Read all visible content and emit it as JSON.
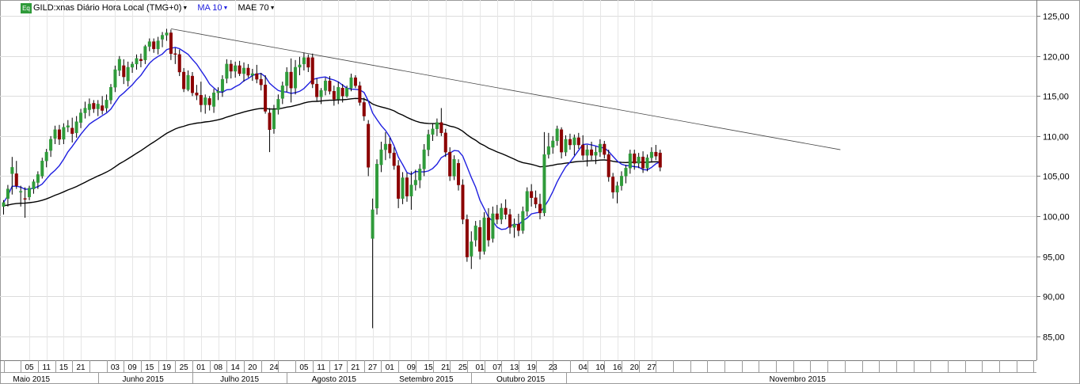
{
  "legend": {
    "symbol_badge": "Eq",
    "symbol_label": "GILD:xnas Diário Hora Local (TMG+0)",
    "ma_label": "MA 10",
    "mae_label": "MAE 70",
    "ma_color": "#1f1fe0",
    "mae_color": "#000000",
    "dropdown_glyph": "▼"
  },
  "chart_data": {
    "type": "candlestick",
    "title": "",
    "ylim": [
      82,
      127
    ],
    "y_ticks": [
      "125,00",
      "120,00",
      "115,00",
      "110,00",
      "105,00",
      "100,00",
      "95,00",
      "90,00",
      "85,00"
    ],
    "y_tick_values": [
      125,
      120,
      115,
      110,
      105,
      100,
      95,
      90,
      85
    ],
    "up_color": "#2f9b3a",
    "down_color": "#8b0000",
    "x_day_labels": [
      {
        "label": "05",
        "index": 6
      },
      {
        "label": "11",
        "index": 10
      },
      {
        "label": "15",
        "index": 14
      },
      {
        "label": "21",
        "index": 18
      },
      {
        "label": "03",
        "index": 26
      },
      {
        "label": "09",
        "index": 30
      },
      {
        "label": "15",
        "index": 34
      },
      {
        "label": "19",
        "index": 38
      },
      {
        "label": "25",
        "index": 42
      },
      {
        "label": "01",
        "index": 46
      },
      {
        "label": "08",
        "index": 50
      },
      {
        "label": "14",
        "index": 54
      },
      {
        "label": "20",
        "index": 58
      },
      {
        "label": "24",
        "index": 63
      },
      {
        "label": "05",
        "index": 70
      },
      {
        "label": "11",
        "index": 74
      },
      {
        "label": "17",
        "index": 78
      },
      {
        "label": "21",
        "index": 82
      },
      {
        "label": "27",
        "index": 86
      },
      {
        "label": "01",
        "index": 90
      },
      {
        "label": "09",
        "index": 95
      },
      {
        "label": "15",
        "index": 99
      },
      {
        "label": "21",
        "index": 103
      },
      {
        "label": "25",
        "index": 107
      },
      {
        "label": "01",
        "index": 111
      },
      {
        "label": "07",
        "index": 115
      },
      {
        "label": "13",
        "index": 119
      },
      {
        "label": "19",
        "index": 123
      },
      {
        "label": "23",
        "index": 128
      },
      {
        "label": "04",
        "index": 135
      },
      {
        "label": "10",
        "index": 139
      },
      {
        "label": "16",
        "index": 143
      },
      {
        "label": "20",
        "index": 147
      },
      {
        "label": "27",
        "index": 151
      }
    ],
    "x_month_labels": [
      {
        "label": "Maio 2015",
        "index": 6.5
      },
      {
        "label": "Junho 2015",
        "index": 32.5
      },
      {
        "label": "Julho 2015",
        "index": 55
      },
      {
        "label": "Agosto 2015",
        "index": 77
      },
      {
        "label": "Setembro 2015",
        "index": 98.5
      },
      {
        "label": "Outubro 2015",
        "index": 120.5
      },
      {
        "label": "Novembro 2015",
        "index": 185
      }
    ],
    "month_boundaries": [
      22,
      44,
      66,
      109,
      131
    ],
    "trendline": {
      "start": {
        "index": 39,
        "value": 123.4
      },
      "end": {
        "index": 195,
        "value": 108.3
      }
    },
    "candles": [
      {
        "o": 101.2,
        "h": 102.0,
        "l": 100.2,
        "c": 101.7
      },
      {
        "o": 102.2,
        "h": 103.9,
        "l": 101.2,
        "c": 103.4
      },
      {
        "o": 105.3,
        "h": 107.4,
        "l": 102.7,
        "c": 106.1
      },
      {
        "o": 105.3,
        "h": 106.9,
        "l": 103.4,
        "c": 103.8
      },
      {
        "o": 103.0,
        "h": 103.8,
        "l": 101.2,
        "c": 103.1
      },
      {
        "o": 102.2,
        "h": 103.6,
        "l": 99.8,
        "c": 102.1
      },
      {
        "o": 102.4,
        "h": 103.8,
        "l": 102.0,
        "c": 103.5
      },
      {
        "o": 103.4,
        "h": 104.6,
        "l": 102.8,
        "c": 104.3
      },
      {
        "o": 104.2,
        "h": 105.6,
        "l": 103.4,
        "c": 105.2
      },
      {
        "o": 105.0,
        "h": 107.3,
        "l": 104.7,
        "c": 106.9
      },
      {
        "o": 106.9,
        "h": 108.4,
        "l": 106.1,
        "c": 108.0
      },
      {
        "o": 108.2,
        "h": 110.0,
        "l": 107.4,
        "c": 109.6
      },
      {
        "o": 109.7,
        "h": 111.3,
        "l": 109.0,
        "c": 110.8
      },
      {
        "o": 110.8,
        "h": 111.4,
        "l": 108.9,
        "c": 109.6
      },
      {
        "o": 109.6,
        "h": 111.6,
        "l": 109.0,
        "c": 111.1
      },
      {
        "o": 111.1,
        "h": 112.0,
        "l": 110.5,
        "c": 111.3
      },
      {
        "o": 111.0,
        "h": 112.3,
        "l": 109.2,
        "c": 110.3
      },
      {
        "o": 110.4,
        "h": 112.5,
        "l": 109.8,
        "c": 111.8
      },
      {
        "o": 111.7,
        "h": 113.4,
        "l": 111.0,
        "c": 112.9
      },
      {
        "o": 112.9,
        "h": 114.3,
        "l": 112.2,
        "c": 113.5
      },
      {
        "o": 113.3,
        "h": 114.7,
        "l": 112.5,
        "c": 114.0
      },
      {
        "o": 114.1,
        "h": 114.5,
        "l": 112.9,
        "c": 113.4
      },
      {
        "o": 113.4,
        "h": 114.5,
        "l": 112.5,
        "c": 114.0
      },
      {
        "o": 113.8,
        "h": 115.0,
        "l": 112.7,
        "c": 113.2
      },
      {
        "o": 113.5,
        "h": 115.2,
        "l": 113.0,
        "c": 114.5
      },
      {
        "o": 114.5,
        "h": 116.5,
        "l": 114.0,
        "c": 116.1
      },
      {
        "o": 116.1,
        "h": 118.8,
        "l": 115.5,
        "c": 118.3
      },
      {
        "o": 118.2,
        "h": 120.0,
        "l": 117.5,
        "c": 119.6
      },
      {
        "o": 118.8,
        "h": 119.6,
        "l": 116.5,
        "c": 117.4
      },
      {
        "o": 116.9,
        "h": 119.3,
        "l": 116.2,
        "c": 118.6
      },
      {
        "o": 118.6,
        "h": 119.3,
        "l": 117.9,
        "c": 119.0
      },
      {
        "o": 119.0,
        "h": 120.2,
        "l": 118.3,
        "c": 119.7
      },
      {
        "o": 119.6,
        "h": 120.3,
        "l": 118.6,
        "c": 119.4
      },
      {
        "o": 119.5,
        "h": 121.4,
        "l": 119.0,
        "c": 121.2
      },
      {
        "o": 121.2,
        "h": 122.2,
        "l": 120.6,
        "c": 121.8
      },
      {
        "o": 121.8,
        "h": 122.2,
        "l": 120.4,
        "c": 120.9
      },
      {
        "o": 120.9,
        "h": 122.4,
        "l": 120.2,
        "c": 121.9
      },
      {
        "o": 122.1,
        "h": 123.0,
        "l": 121.1,
        "c": 122.6
      },
      {
        "o": 122.6,
        "h": 123.4,
        "l": 121.9,
        "c": 122.9
      },
      {
        "o": 122.9,
        "h": 123.3,
        "l": 119.5,
        "c": 120.3
      },
      {
        "o": 120.3,
        "h": 121.0,
        "l": 119.0,
        "c": 120.2
      },
      {
        "o": 120.2,
        "h": 120.8,
        "l": 117.5,
        "c": 118.0
      },
      {
        "o": 118.0,
        "h": 118.5,
        "l": 115.5,
        "c": 115.9
      },
      {
        "o": 115.8,
        "h": 118.2,
        "l": 115.6,
        "c": 117.6
      },
      {
        "o": 117.5,
        "h": 118.0,
        "l": 115.0,
        "c": 115.4
      },
      {
        "o": 115.4,
        "h": 116.4,
        "l": 114.5,
        "c": 115.1
      },
      {
        "o": 115.1,
        "h": 116.8,
        "l": 113.0,
        "c": 113.9
      },
      {
        "o": 113.9,
        "h": 115.2,
        "l": 112.8,
        "c": 114.8
      },
      {
        "o": 114.7,
        "h": 115.0,
        "l": 113.2,
        "c": 113.9
      },
      {
        "o": 113.7,
        "h": 115.9,
        "l": 112.9,
        "c": 115.4
      },
      {
        "o": 115.4,
        "h": 116.1,
        "l": 114.5,
        "c": 115.6
      },
      {
        "o": 115.6,
        "h": 117.6,
        "l": 114.9,
        "c": 117.1
      },
      {
        "o": 117.2,
        "h": 119.6,
        "l": 116.6,
        "c": 119.0
      },
      {
        "o": 119.0,
        "h": 119.5,
        "l": 117.2,
        "c": 118.1
      },
      {
        "o": 118.1,
        "h": 119.3,
        "l": 117.3,
        "c": 118.8
      },
      {
        "o": 118.8,
        "h": 119.4,
        "l": 117.5,
        "c": 117.8
      },
      {
        "o": 117.8,
        "h": 119.2,
        "l": 116.8,
        "c": 118.5
      },
      {
        "o": 118.5,
        "h": 119.0,
        "l": 117.3,
        "c": 117.6
      },
      {
        "o": 117.6,
        "h": 118.4,
        "l": 116.9,
        "c": 117.8
      },
      {
        "o": 117.8,
        "h": 118.9,
        "l": 116.6,
        "c": 117.1
      },
      {
        "o": 117.1,
        "h": 117.9,
        "l": 115.7,
        "c": 116.4
      },
      {
        "o": 116.4,
        "h": 117.6,
        "l": 112.8,
        "c": 113.1
      },
      {
        "o": 112.9,
        "h": 113.5,
        "l": 108.0,
        "c": 110.8
      },
      {
        "o": 110.9,
        "h": 113.9,
        "l": 110.3,
        "c": 113.3
      },
      {
        "o": 113.3,
        "h": 115.2,
        "l": 112.7,
        "c": 114.6
      },
      {
        "o": 114.7,
        "h": 116.8,
        "l": 114.0,
        "c": 116.3
      },
      {
        "o": 116.3,
        "h": 118.6,
        "l": 115.5,
        "c": 118.0
      },
      {
        "o": 118.0,
        "h": 119.7,
        "l": 114.2,
        "c": 116.0
      },
      {
        "o": 116.0,
        "h": 119.5,
        "l": 115.2,
        "c": 118.6
      },
      {
        "o": 118.6,
        "h": 119.9,
        "l": 117.6,
        "c": 118.9
      },
      {
        "o": 119.0,
        "h": 120.4,
        "l": 118.2,
        "c": 119.8
      },
      {
        "o": 119.8,
        "h": 120.2,
        "l": 118.0,
        "c": 118.6
      },
      {
        "o": 119.8,
        "h": 120.3,
        "l": 116.0,
        "c": 116.5
      },
      {
        "o": 116.5,
        "h": 117.2,
        "l": 114.3,
        "c": 114.9
      },
      {
        "o": 114.9,
        "h": 116.0,
        "l": 114.0,
        "c": 115.7
      },
      {
        "o": 115.7,
        "h": 117.3,
        "l": 115.1,
        "c": 116.9
      },
      {
        "o": 116.9,
        "h": 117.5,
        "l": 115.2,
        "c": 115.6
      },
      {
        "o": 115.6,
        "h": 116.3,
        "l": 113.8,
        "c": 114.6
      },
      {
        "o": 114.6,
        "h": 116.8,
        "l": 114.0,
        "c": 116.1
      },
      {
        "o": 116.0,
        "h": 116.5,
        "l": 114.2,
        "c": 115.0
      },
      {
        "o": 115.0,
        "h": 116.3,
        "l": 114.8,
        "c": 116.0
      },
      {
        "o": 116.0,
        "h": 117.8,
        "l": 115.6,
        "c": 117.3
      },
      {
        "o": 117.3,
        "h": 117.6,
        "l": 116.0,
        "c": 116.3
      },
      {
        "o": 116.3,
        "h": 116.8,
        "l": 113.8,
        "c": 114.2
      },
      {
        "o": 114.2,
        "h": 114.8,
        "l": 111.9,
        "c": 112.5
      },
      {
        "o": 111.5,
        "h": 112.0,
        "l": 105.0,
        "c": 106.1
      },
      {
        "o": 97.2,
        "h": 102.2,
        "l": 86.0,
        "c": 100.8
      },
      {
        "o": 101.0,
        "h": 107.1,
        "l": 100.2,
        "c": 106.5
      },
      {
        "o": 106.4,
        "h": 109.3,
        "l": 105.5,
        "c": 108.3
      },
      {
        "o": 108.3,
        "h": 110.5,
        "l": 107.0,
        "c": 109.0
      },
      {
        "o": 109.0,
        "h": 109.8,
        "l": 107.2,
        "c": 107.9
      },
      {
        "o": 107.9,
        "h": 108.6,
        "l": 105.8,
        "c": 106.3
      },
      {
        "o": 106.3,
        "h": 107.0,
        "l": 101.0,
        "c": 102.2
      },
      {
        "o": 102.2,
        "h": 105.5,
        "l": 101.5,
        "c": 104.8
      },
      {
        "o": 104.8,
        "h": 105.4,
        "l": 101.8,
        "c": 102.5
      },
      {
        "o": 102.5,
        "h": 105.6,
        "l": 100.8,
        "c": 103.9
      },
      {
        "o": 103.9,
        "h": 105.8,
        "l": 103.2,
        "c": 104.5
      },
      {
        "o": 104.5,
        "h": 106.5,
        "l": 103.5,
        "c": 105.9
      },
      {
        "o": 105.9,
        "h": 109.0,
        "l": 105.0,
        "c": 108.3
      },
      {
        "o": 108.3,
        "h": 110.8,
        "l": 107.5,
        "c": 110.2
      },
      {
        "o": 110.2,
        "h": 111.6,
        "l": 109.4,
        "c": 110.9
      },
      {
        "o": 110.9,
        "h": 112.2,
        "l": 110.0,
        "c": 111.7
      },
      {
        "o": 111.7,
        "h": 113.5,
        "l": 110.0,
        "c": 110.4
      },
      {
        "o": 110.4,
        "h": 110.9,
        "l": 107.4,
        "c": 108.0
      },
      {
        "o": 108.0,
        "h": 108.6,
        "l": 104.4,
        "c": 105.0
      },
      {
        "o": 105.0,
        "h": 107.6,
        "l": 104.5,
        "c": 107.1
      },
      {
        "o": 106.6,
        "h": 107.1,
        "l": 103.2,
        "c": 103.9
      },
      {
        "o": 103.9,
        "h": 104.6,
        "l": 99.0,
        "c": 99.6
      },
      {
        "o": 99.6,
        "h": 100.2,
        "l": 94.3,
        "c": 94.9
      },
      {
        "o": 95.0,
        "h": 98.1,
        "l": 93.4,
        "c": 96.8
      },
      {
        "o": 97.0,
        "h": 99.4,
        "l": 96.2,
        "c": 98.8
      },
      {
        "o": 98.6,
        "h": 99.5,
        "l": 94.6,
        "c": 95.6
      },
      {
        "o": 95.6,
        "h": 100.5,
        "l": 95.2,
        "c": 99.8
      },
      {
        "o": 99.8,
        "h": 101.0,
        "l": 96.2,
        "c": 97.0
      },
      {
        "o": 97.2,
        "h": 101.2,
        "l": 96.7,
        "c": 100.3
      },
      {
        "o": 100.3,
        "h": 101.4,
        "l": 99.0,
        "c": 99.6
      },
      {
        "o": 99.6,
        "h": 101.6,
        "l": 99.0,
        "c": 101.0
      },
      {
        "o": 101.0,
        "h": 102.1,
        "l": 99.6,
        "c": 100.2
      },
      {
        "o": 100.2,
        "h": 100.9,
        "l": 97.8,
        "c": 98.6
      },
      {
        "o": 98.6,
        "h": 99.7,
        "l": 97.3,
        "c": 99.0
      },
      {
        "o": 99.0,
        "h": 100.3,
        "l": 97.5,
        "c": 98.2
      },
      {
        "o": 98.2,
        "h": 101.2,
        "l": 97.8,
        "c": 100.6
      },
      {
        "o": 100.6,
        "h": 103.6,
        "l": 100.0,
        "c": 103.1
      },
      {
        "o": 103.1,
        "h": 104.0,
        "l": 101.2,
        "c": 102.3
      },
      {
        "o": 102.3,
        "h": 103.2,
        "l": 101.0,
        "c": 101.5
      },
      {
        "o": 101.5,
        "h": 102.8,
        "l": 99.6,
        "c": 100.4
      },
      {
        "o": 100.4,
        "h": 110.5,
        "l": 100.0,
        "c": 107.7
      },
      {
        "o": 107.7,
        "h": 110.4,
        "l": 107.2,
        "c": 108.7
      },
      {
        "o": 108.6,
        "h": 110.0,
        "l": 107.8,
        "c": 109.4
      },
      {
        "o": 109.4,
        "h": 111.3,
        "l": 108.8,
        "c": 110.9
      },
      {
        "o": 110.8,
        "h": 111.1,
        "l": 107.2,
        "c": 108.0
      },
      {
        "o": 108.0,
        "h": 110.1,
        "l": 107.5,
        "c": 109.6
      },
      {
        "o": 109.6,
        "h": 110.3,
        "l": 108.3,
        "c": 108.9
      },
      {
        "o": 108.9,
        "h": 110.2,
        "l": 107.6,
        "c": 109.8
      },
      {
        "o": 109.8,
        "h": 110.4,
        "l": 108.4,
        "c": 108.9
      },
      {
        "o": 108.9,
        "h": 110.1,
        "l": 107.0,
        "c": 107.6
      },
      {
        "o": 107.6,
        "h": 108.9,
        "l": 106.2,
        "c": 108.3
      },
      {
        "o": 108.3,
        "h": 109.3,
        "l": 107.0,
        "c": 107.6
      },
      {
        "o": 107.6,
        "h": 108.7,
        "l": 106.5,
        "c": 108.0
      },
      {
        "o": 108.0,
        "h": 109.6,
        "l": 107.4,
        "c": 109.0
      },
      {
        "o": 109.0,
        "h": 109.4,
        "l": 107.2,
        "c": 107.7
      },
      {
        "o": 107.7,
        "h": 108.3,
        "l": 104.3,
        "c": 104.9
      },
      {
        "o": 104.9,
        "h": 105.4,
        "l": 102.2,
        "c": 103.0
      },
      {
        "o": 103.0,
        "h": 104.3,
        "l": 101.6,
        "c": 103.8
      },
      {
        "o": 103.8,
        "h": 105.6,
        "l": 103.2,
        "c": 105.0
      },
      {
        "o": 105.0,
        "h": 106.4,
        "l": 104.1,
        "c": 106.0
      },
      {
        "o": 106.0,
        "h": 108.3,
        "l": 105.3,
        "c": 107.8
      },
      {
        "o": 107.8,
        "h": 108.3,
        "l": 105.8,
        "c": 106.6
      },
      {
        "o": 106.6,
        "h": 107.9,
        "l": 106.0,
        "c": 107.4
      },
      {
        "o": 107.4,
        "h": 108.1,
        "l": 105.4,
        "c": 106.0
      },
      {
        "o": 106.0,
        "h": 107.7,
        "l": 105.6,
        "c": 107.3
      },
      {
        "o": 107.3,
        "h": 108.6,
        "l": 106.7,
        "c": 108.0
      },
      {
        "o": 108.0,
        "h": 108.9,
        "l": 107.0,
        "c": 107.5
      },
      {
        "o": 107.9,
        "h": 108.3,
        "l": 105.6,
        "c": 106.1
      }
    ]
  }
}
